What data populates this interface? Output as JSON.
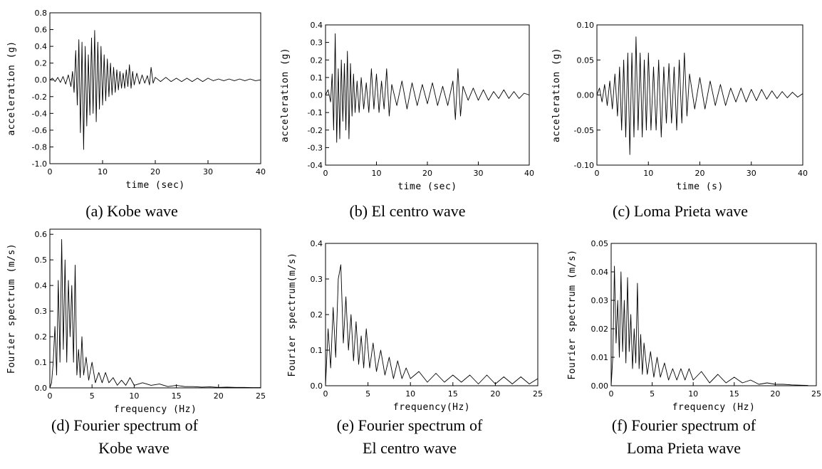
{
  "chart_data": [
    {
      "id": "a",
      "type": "line",
      "caption": "(a) Kobe wave",
      "xlabel": "time (sec)",
      "ylabel": "acceleration (g)",
      "xlim": [
        0,
        40
      ],
      "ylim": [
        -1.0,
        0.8
      ],
      "xticks": [
        0,
        10,
        20,
        30,
        40
      ],
      "xtick_labels": [
        "0",
        "10",
        "20",
        "30",
        "40"
      ],
      "yticks": [
        -1.0,
        -0.8,
        -0.6,
        -0.4,
        -0.2,
        0.0,
        0.2,
        0.4,
        0.6,
        0.8
      ],
      "ytick_labels": [
        "-1.0",
        "-0.8",
        "-0.6",
        "-0.4",
        "-0.2",
        "0.0",
        "0.2",
        "0.4",
        "0.6",
        "0.8"
      ],
      "series": [
        {
          "x": [
            0,
            0.5,
            1,
            1.5,
            2,
            2.5,
            3,
            3.5,
            4,
            4.3,
            4.6,
            4.9,
            5.2,
            5.5,
            5.8,
            6.1,
            6.4,
            6.7,
            7.0,
            7.3,
            7.6,
            7.9,
            8.2,
            8.5,
            8.8,
            9.1,
            9.4,
            9.7,
            10,
            10.3,
            10.6,
            10.9,
            11.2,
            11.5,
            11.8,
            12.1,
            12.4,
            12.7,
            13,
            13.3,
            13.6,
            13.9,
            14.2,
            14.5,
            14.8,
            15.1,
            15.4,
            15.7,
            16,
            16.5,
            17,
            17.5,
            18,
            18.5,
            18.9,
            19.2,
            19.6,
            20,
            21,
            22,
            23,
            24,
            25,
            26,
            27,
            28,
            29,
            30,
            31,
            32,
            33,
            34,
            35,
            36,
            37,
            38,
            39,
            40
          ],
          "y": [
            0,
            0.02,
            -0.02,
            0.03,
            -0.03,
            0.04,
            -0.05,
            0.06,
            -0.08,
            0.1,
            -0.15,
            0.35,
            -0.3,
            0.48,
            -0.63,
            0.45,
            -0.83,
            0.4,
            -0.55,
            0.3,
            -0.42,
            0.5,
            -0.4,
            0.59,
            -0.5,
            0.45,
            -0.35,
            0.4,
            -0.3,
            0.3,
            -0.25,
            0.25,
            -0.2,
            0.2,
            -0.18,
            0.15,
            -0.15,
            0.12,
            -0.12,
            0.1,
            -0.1,
            0.08,
            -0.1,
            0.12,
            -0.08,
            0.18,
            -0.1,
            0.1,
            -0.06,
            0.08,
            -0.05,
            0.06,
            -0.04,
            0.05,
            -0.06,
            0.15,
            -0.04,
            0.03,
            -0.02,
            0.03,
            -0.02,
            0.02,
            -0.02,
            0.02,
            -0.02,
            0.02,
            -0.02,
            0.02,
            -0.01,
            0.01,
            -0.01,
            0.01,
            -0.01,
            0.01,
            -0.01,
            0.01,
            -0.01,
            0.0
          ]
        }
      ]
    },
    {
      "id": "b",
      "type": "line",
      "caption": "(b) El centro wave",
      "xlabel": "time (sec)",
      "ylabel": "acceleration (g)",
      "xlim": [
        0,
        40
      ],
      "ylim": [
        -0.4,
        0.4
      ],
      "xticks": [
        0,
        10,
        20,
        30,
        40
      ],
      "xtick_labels": [
        "0",
        "10",
        "20",
        "30",
        "40"
      ],
      "yticks": [
        -0.4,
        -0.3,
        -0.2,
        -0.1,
        0.0,
        0.1,
        0.2,
        0.3,
        0.4
      ],
      "ytick_labels": [
        "-0.4",
        "-0.3",
        "-0.2",
        "-0.1",
        "0.0",
        "0.1",
        "0.2",
        "0.3",
        "0.4"
      ],
      "series": [
        {
          "x": [
            0,
            0.5,
            1,
            1.3,
            1.6,
            1.9,
            2.2,
            2.5,
            2.8,
            3.1,
            3.4,
            3.7,
            4.0,
            4.3,
            4.6,
            4.9,
            5.2,
            5.5,
            5.8,
            6.2,
            6.6,
            7,
            7.5,
            8,
            8.5,
            9,
            9.5,
            10,
            10.5,
            11,
            11.5,
            12,
            12.5,
            13,
            14,
            15,
            16,
            17,
            18,
            19,
            20,
            21,
            22,
            23,
            24,
            25,
            25.5,
            26,
            26.5,
            27,
            28,
            29,
            30,
            31,
            32,
            33,
            34,
            35,
            36,
            37,
            38,
            39,
            40
          ],
          "y": [
            0,
            0.03,
            -0.04,
            0.12,
            -0.2,
            0.35,
            -0.27,
            0.15,
            -0.25,
            0.2,
            -0.15,
            0.18,
            -0.2,
            0.25,
            -0.25,
            0.18,
            -0.12,
            0.12,
            -0.1,
            0.08,
            -0.1,
            0.1,
            -0.08,
            0.07,
            -0.1,
            0.15,
            -0.08,
            0.12,
            -0.1,
            0.08,
            -0.08,
            0.15,
            -0.12,
            0.06,
            -0.06,
            0.08,
            -0.08,
            0.07,
            -0.06,
            0.06,
            -0.05,
            0.07,
            -0.06,
            0.05,
            -0.06,
            0.08,
            -0.14,
            0.15,
            -0.12,
            0.05,
            -0.03,
            0.04,
            -0.03,
            0.03,
            -0.03,
            0.02,
            -0.02,
            0.03,
            -0.02,
            0.02,
            -0.02,
            0.01,
            0.0
          ]
        }
      ]
    },
    {
      "id": "c",
      "type": "line",
      "caption": "(c)   Loma Prieta wave",
      "xlabel": "time (s)",
      "ylabel": "acceleration (g)",
      "xlim": [
        0,
        40
      ],
      "ylim": [
        -0.1,
        0.1
      ],
      "xticks": [
        0,
        10,
        20,
        30,
        40
      ],
      "xtick_labels": [
        "0",
        "10",
        "20",
        "30",
        "40"
      ],
      "yticks": [
        -0.1,
        -0.05,
        0.0,
        0.05,
        0.1
      ],
      "ytick_labels": [
        "-0.10",
        "-0.05",
        "0.00",
        "0.05",
        "0.10"
      ],
      "series": [
        {
          "x": [
            0,
            0.5,
            1,
            1.5,
            2,
            2.5,
            3,
            3.5,
            4,
            4.4,
            4.8,
            5.2,
            5.6,
            6.0,
            6.4,
            6.8,
            7.2,
            7.6,
            8.0,
            8.4,
            8.8,
            9.2,
            9.6,
            10,
            10.5,
            11,
            11.5,
            12,
            12.5,
            13,
            13.5,
            14,
            14.5,
            15,
            15.5,
            16,
            16.5,
            17,
            17.5,
            18,
            19,
            20,
            21,
            22,
            23,
            24,
            25,
            26,
            27,
            28,
            29,
            30,
            31,
            32,
            33,
            34,
            35,
            36,
            37,
            38,
            39,
            40
          ],
          "y": [
            0,
            0.01,
            -0.01,
            0.015,
            -0.015,
            0.02,
            -0.02,
            0.03,
            -0.03,
            0.04,
            -0.05,
            0.05,
            -0.06,
            0.06,
            -0.085,
            0.06,
            -0.06,
            0.083,
            -0.05,
            0.06,
            -0.06,
            0.05,
            -0.05,
            0.06,
            -0.05,
            0.04,
            -0.05,
            0.05,
            -0.06,
            0.04,
            -0.04,
            0.045,
            -0.04,
            0.04,
            -0.05,
            0.05,
            -0.04,
            0.06,
            -0.03,
            0.03,
            -0.02,
            0.025,
            -0.02,
            0.02,
            -0.015,
            0.015,
            -0.015,
            0.01,
            -0.01,
            0.01,
            -0.01,
            0.008,
            -0.008,
            0.008,
            -0.006,
            0.006,
            -0.005,
            0.005,
            -0.004,
            0.004,
            -0.003,
            0.002
          ]
        }
      ]
    },
    {
      "id": "d",
      "type": "line",
      "caption_lines": [
        "(d) Fourier spectrum of",
        "Kobe wave"
      ],
      "xlabel": "frequency (Hz)",
      "ylabel": "Fourier spectrum (m/s)",
      "xlim": [
        0,
        25
      ],
      "ylim": [
        0,
        0.62
      ],
      "xticks": [
        0,
        5,
        10,
        15,
        20,
        25
      ],
      "xtick_labels": [
        "0",
        "5",
        "10",
        "15",
        "20",
        "25"
      ],
      "yticks": [
        0.0,
        0.1,
        0.2,
        0.3,
        0.4,
        0.5,
        0.6
      ],
      "ytick_labels": [
        "0.0",
        "0.1",
        "0.2",
        "0.3",
        "0.4",
        "0.5",
        "0.6"
      ],
      "series": [
        {
          "x": [
            0,
            0.2,
            0.4,
            0.6,
            0.8,
            1.0,
            1.2,
            1.4,
            1.6,
            1.8,
            2.0,
            2.2,
            2.4,
            2.6,
            2.8,
            3.0,
            3.2,
            3.4,
            3.6,
            3.8,
            4.0,
            4.3,
            4.6,
            5.0,
            5.4,
            5.8,
            6.2,
            6.6,
            7.0,
            7.5,
            8,
            8.5,
            9,
            9.5,
            10,
            11,
            12,
            13,
            14,
            15,
            16,
            17,
            18,
            19,
            20,
            21,
            22,
            23,
            24,
            25
          ],
          "y": [
            0,
            0.02,
            0.1,
            0.24,
            0.05,
            0.42,
            0.1,
            0.58,
            0.15,
            0.5,
            0.1,
            0.42,
            0.2,
            0.4,
            0.1,
            0.48,
            0.05,
            0.15,
            0.04,
            0.2,
            0.05,
            0.12,
            0.03,
            0.1,
            0.02,
            0.06,
            0.02,
            0.06,
            0.02,
            0.04,
            0.01,
            0.03,
            0.01,
            0.04,
            0.01,
            0.02,
            0.01,
            0.015,
            0.005,
            0.01,
            0.005,
            0.005,
            0.003,
            0.004,
            0.002,
            0.003,
            0.002,
            0.002,
            0.001,
            0.001
          ]
        }
      ]
    },
    {
      "id": "e",
      "type": "line",
      "caption_lines": [
        "(e) Fourier spectrum of",
        "El centro wave"
      ],
      "xlabel": "frequency(Hz)",
      "ylabel": "Fourier spectrum(m/s)",
      "xlim": [
        0,
        25
      ],
      "ylim": [
        0,
        0.4
      ],
      "xticks": [
        0,
        5,
        10,
        15,
        20,
        25
      ],
      "xtick_labels": [
        "0",
        "5",
        "10",
        "15",
        "20",
        "25"
      ],
      "yticks": [
        0.0,
        0.1,
        0.2,
        0.3,
        0.4
      ],
      "ytick_labels": [
        "0.0",
        "0.1",
        "0.2",
        "0.3",
        "0.4"
      ],
      "series": [
        {
          "x": [
            0,
            0.3,
            0.6,
            0.9,
            1.2,
            1.5,
            1.8,
            2.1,
            2.4,
            2.7,
            3.0,
            3.3,
            3.6,
            3.9,
            4.2,
            4.5,
            4.8,
            5.2,
            5.6,
            6.0,
            6.5,
            7,
            7.5,
            8,
            8.5,
            9,
            9.5,
            10,
            11,
            12,
            13,
            14,
            15,
            16,
            17,
            18,
            19,
            20,
            21,
            22,
            23,
            24,
            25
          ],
          "y": [
            0,
            0.16,
            0.05,
            0.22,
            0.08,
            0.3,
            0.34,
            0.12,
            0.25,
            0.1,
            0.2,
            0.07,
            0.18,
            0.06,
            0.14,
            0.05,
            0.16,
            0.05,
            0.12,
            0.04,
            0.1,
            0.03,
            0.08,
            0.02,
            0.07,
            0.02,
            0.05,
            0.02,
            0.04,
            0.01,
            0.035,
            0.01,
            0.03,
            0.01,
            0.03,
            0.005,
            0.03,
            0.005,
            0.025,
            0.005,
            0.025,
            0.005,
            0.02
          ]
        }
      ]
    },
    {
      "id": "f",
      "type": "line",
      "caption_lines": [
        "(f) Fourier spectrum of",
        "Loma Prieta wave"
      ],
      "xlabel": "frequency (Hz)",
      "ylabel": "Fourier spectrum (m/s)",
      "xlim": [
        0,
        25
      ],
      "ylim": [
        0,
        0.05
      ],
      "xticks": [
        0,
        5,
        10,
        15,
        20,
        25
      ],
      "xtick_labels": [
        "0",
        "5",
        "10",
        "15",
        "20",
        "25"
      ],
      "yticks": [
        0.0,
        0.01,
        0.02,
        0.03,
        0.04,
        0.05
      ],
      "ytick_labels": [
        "0.00",
        "0.01",
        "0.02",
        "0.03",
        "0.04",
        "0.05"
      ],
      "series": [
        {
          "x": [
            0,
            0.2,
            0.4,
            0.6,
            0.8,
            1.0,
            1.2,
            1.4,
            1.6,
            1.8,
            2.0,
            2.2,
            2.4,
            2.6,
            2.8,
            3.0,
            3.2,
            3.4,
            3.6,
            3.8,
            4.0,
            4.4,
            4.8,
            5.2,
            5.6,
            6.0,
            6.5,
            7,
            7.5,
            8,
            8.5,
            9,
            9.5,
            10,
            11,
            12,
            13,
            14,
            15,
            16,
            17,
            18,
            19,
            20,
            21,
            22,
            23,
            24
          ],
          "y": [
            0,
            0.01,
            0.042,
            0.015,
            0.03,
            0.01,
            0.04,
            0.012,
            0.03,
            0.008,
            0.038,
            0.012,
            0.025,
            0.006,
            0.02,
            0.008,
            0.036,
            0.006,
            0.018,
            0.004,
            0.015,
            0.004,
            0.012,
            0.003,
            0.01,
            0.003,
            0.008,
            0.002,
            0.006,
            0.002,
            0.006,
            0.002,
            0.006,
            0.002,
            0.005,
            0.001,
            0.004,
            0.001,
            0.003,
            0.001,
            0.002,
            0.0005,
            0.001,
            0.0005,
            0.0005,
            0.0003,
            0.0002,
            0.0001
          ]
        }
      ]
    }
  ]
}
